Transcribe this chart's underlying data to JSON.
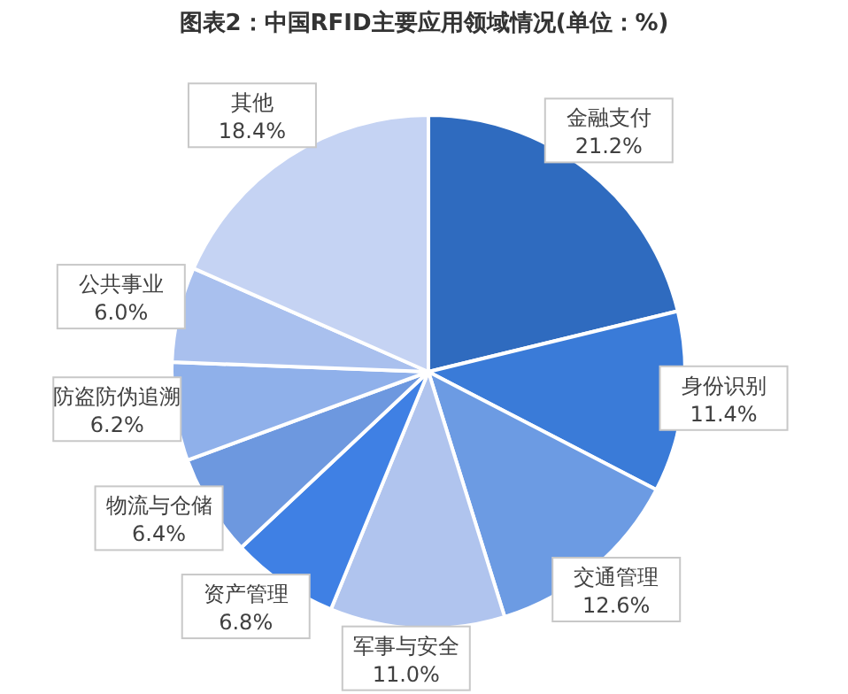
{
  "chart_data": {
    "type": "pie",
    "title": "图表2：中国RFID主要应用领域情况(单位：%)",
    "categories": [
      "金融支付",
      "身份识别",
      "交通管理",
      "军事与安全",
      "资产管理",
      "物流与仓储",
      "防盗防伪追溯",
      "公共事业",
      "其他"
    ],
    "values": [
      21.2,
      11.4,
      12.6,
      11.0,
      6.8,
      6.4,
      6.2,
      6.0,
      18.4
    ],
    "colors": [
      "#2f6bbf",
      "#3a7bd8",
      "#6c9be3",
      "#b0c4ee",
      "#3f80e4",
      "#6d98df",
      "#8fb0ea",
      "#a9c0ee",
      "#c5d3f3"
    ],
    "value_labels": [
      "21.2%",
      "11.4%",
      "12.6%",
      "11.0%",
      "6.8%",
      "6.4%",
      "6.2%",
      "6.0%",
      "18.4%"
    ],
    "legend": false
  }
}
